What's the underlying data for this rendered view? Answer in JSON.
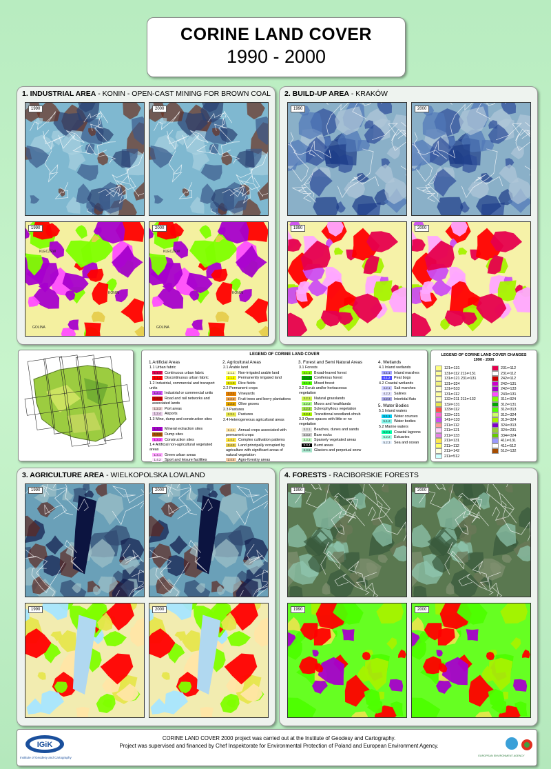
{
  "title": {
    "line1": "CORINE LAND COVER",
    "line2": "1990 - 2000"
  },
  "panels": [
    {
      "number_title": "1. INDUSTRIAL AREA",
      "subtitle": "- KONIN - OPEN-CAST MINING FOR BROWN COAL",
      "maps": [
        "1990",
        "2000",
        "1990",
        "2000"
      ],
      "places": [
        "KLECZEW",
        "KONIN",
        "GOLINA"
      ]
    },
    {
      "number_title": "2. BUILD-UP AREA",
      "subtitle": "- KRAKÓW",
      "maps": [
        "1990",
        "2000",
        "1990",
        "2000"
      ],
      "places": []
    },
    {
      "number_title": "3. AGRICULTURE AREA",
      "subtitle": "- WIELKOPOLSKA LOWLAND",
      "maps": [
        "1990",
        "2000",
        "1990",
        "2000"
      ],
      "places": []
    },
    {
      "number_title": "4. FORESTS",
      "subtitle": "- RACIBORSKIE FORESTS",
      "maps": [
        "1990",
        "2000",
        "1990",
        "2000"
      ],
      "places": []
    }
  ],
  "legend": {
    "title": "LEGEND OF CORINE LAND COVER",
    "groups": [
      {
        "heading": "1.Artificial Areas",
        "entries": [
          {
            "label": "1.1 Urban fabric"
          },
          {
            "code": "1.1.1",
            "label": "Continuous urban fabric",
            "color": "#e6004d"
          },
          {
            "code": "1.1.2",
            "label": "Discontinuous urban fabric",
            "color": "#ff0000"
          },
          {
            "label": "1.2 Industrial, commercial and transport units"
          },
          {
            "code": "1.2.1",
            "label": "Industrial or commercial units",
            "color": "#cc4df2"
          },
          {
            "code": "1.2.2",
            "label": "Road and rail networks and associated lands",
            "color": "#cc0000"
          },
          {
            "code": "1.2.3",
            "label": "Port areas",
            "color": "#e6cccc"
          },
          {
            "code": "1.2.4",
            "label": "Airports",
            "color": "#e6cce6"
          },
          {
            "label": "1.3 Mine, dump and construction sites"
          },
          {
            "code": "1.3.1",
            "label": "Mineral extraction sites",
            "color": "#a600cc"
          },
          {
            "code": "1.3.2",
            "label": "Dump sites",
            "color": "#a64d00"
          },
          {
            "code": "1.3.3",
            "label": "Construction sites",
            "color": "#ff4dff"
          },
          {
            "label": "1.4 Artificial non-agricultural vegetated areas"
          },
          {
            "code": "1.4.1",
            "label": "Green urban areas",
            "color": "#ffa6ff"
          },
          {
            "code": "1.4.2",
            "label": "Sport and leisure facilities",
            "color": "#ffe6ff"
          }
        ]
      },
      {
        "heading": "2. Agricultural Areas",
        "entries": [
          {
            "label": "2.1 Arable land"
          },
          {
            "code": "2.1.1",
            "label": "Non-irrigated arable land",
            "color": "#ffffa8"
          },
          {
            "code": "2.1.2",
            "label": "Permanently irrigated land",
            "color": "#ffff00"
          },
          {
            "code": "2.1.3",
            "label": "Rice fields",
            "color": "#e6e600"
          },
          {
            "label": "2.2 Permanent crops"
          },
          {
            "code": "2.2.1",
            "label": "Vineyards",
            "color": "#e68000"
          },
          {
            "code": "2.2.2",
            "label": "Fruit trees and berry plantations",
            "color": "#f2a64d"
          },
          {
            "code": "2.2.3",
            "label": "Olive groves",
            "color": "#e6a600"
          },
          {
            "label": "2.3 Pastures"
          },
          {
            "code": "2.3.1",
            "label": "Pastures",
            "color": "#e6e64d"
          },
          {
            "label": "2.4 Heterogeneous agricultural areas"
          },
          {
            "code": "2.4.1",
            "label": "Annual crops associated with permanent crops",
            "color": "#ffe6a6"
          },
          {
            "code": "2.4.2",
            "label": "Complex cultivation patterns",
            "color": "#ffe64d"
          },
          {
            "code": "2.4.3",
            "label": "Land principally occupied by agriculture with significant areas of natural vegetation",
            "color": "#e6cc4d"
          },
          {
            "code": "2.4.4",
            "label": "Agro-forestry areas",
            "color": "#f2cca6"
          }
        ]
      },
      {
        "heading": "3. Forest and Semi Natural Areas",
        "entries": [
          {
            "label": "3.1 Forests"
          },
          {
            "code": "3.1.1",
            "label": "Broad-leaved forest",
            "color": "#80ff00"
          },
          {
            "code": "3.1.2",
            "label": "Coniferous forest",
            "color": "#00a600"
          },
          {
            "code": "3.1.3",
            "label": "Mixed forest",
            "color": "#4dff00"
          },
          {
            "label": "3.2 Scrub and/or herbaceous vegetation"
          },
          {
            "code": "3.2.1",
            "label": "Natural grasslands",
            "color": "#ccf24d"
          },
          {
            "code": "3.2.2",
            "label": "Moors and heathlands",
            "color": "#a6ff80"
          },
          {
            "code": "3.2.3",
            "label": "Sclerophyllous vegetation",
            "color": "#a6e64d"
          },
          {
            "code": "3.2.4",
            "label": "Transitional woodland-shrub",
            "color": "#a6f200"
          },
          {
            "label": "3.3 Open spaces with little or no vegetation"
          },
          {
            "code": "3.3.1",
            "label": "Beaches, dunes and sands",
            "color": "#e6e6e6"
          },
          {
            "code": "3.3.2",
            "label": "Bare rocks",
            "color": "#cccccc"
          },
          {
            "code": "3.3.3",
            "label": "Sparsely vegetated areas",
            "color": "#ccffcc"
          },
          {
            "code": "3.3.4",
            "label": "Burnt areas",
            "color": "#000000"
          },
          {
            "code": "3.3.5",
            "label": "Glaciers and perpetual snow",
            "color": "#a6e6cc"
          }
        ]
      },
      {
        "heading": "4. Wetlands",
        "entries": [
          {
            "label": "4.1 Inland wetlands"
          },
          {
            "code": "4.1.1",
            "label": "Inland marshes",
            "color": "#a6a6ff"
          },
          {
            "code": "4.1.2",
            "label": "Peat bogs",
            "color": "#4d4dff"
          },
          {
            "label": "4.2 Coastal wetlands"
          },
          {
            "code": "4.2.1",
            "label": "Salt marshes",
            "color": "#ccccff"
          },
          {
            "code": "4.2.2",
            "label": "Salines",
            "color": "#e6e6ff"
          },
          {
            "code": "4.2.3",
            "label": "Intertidal flats",
            "color": "#a6a6e6"
          }
        ]
      },
      {
        "heading": "5. Water Bodies",
        "entries": [
          {
            "label": "5.1 Inland waters"
          },
          {
            "code": "5.1.1",
            "label": "Water courses",
            "color": "#00ccf2"
          },
          {
            "code": "5.1.2",
            "label": "Water bodies",
            "color": "#80f2e6"
          },
          {
            "label": "5.2 Marine waters"
          },
          {
            "code": "5.2.1",
            "label": "Coastal lagoons",
            "color": "#00ffa6"
          },
          {
            "code": "5.2.2",
            "label": "Estuaries",
            "color": "#a6ffe6"
          },
          {
            "code": "5.2.3",
            "label": "Sea and ocean",
            "color": "#e6f2ff"
          }
        ]
      }
    ]
  },
  "changes": {
    "title": "LEGEND OF CORINE LAND COVER CHANGES",
    "period": "1990 - 2000",
    "columns": [
      [
        {
          "code": "121⇐131",
          "color": "#ffff80"
        },
        {
          "code": "131⇐112 211⇐131",
          "color": "#ffff99"
        },
        {
          "code": "131⇐121 231⇐131",
          "color": "#ffffb0"
        },
        {
          "code": "131⇐324",
          "color": "#f2f280"
        },
        {
          "code": "131⇐533",
          "color": "#ffffcc"
        },
        {
          "code": "131⇐112",
          "color": "#ffffa0"
        },
        {
          "code": "132⇐211 211⇐132",
          "color": "#ffffc0"
        },
        {
          "code": "132⇐131",
          "color": "#e6e64d"
        },
        {
          "code": "133⇐112",
          "color": "#ff4d4d"
        },
        {
          "code": "133⇐121",
          "color": "#ff66cc"
        },
        {
          "code": "141⇐133",
          "color": "#cc4df2"
        },
        {
          "code": "211⇐112",
          "color": "#ff9999"
        },
        {
          "code": "211⇐121",
          "color": "#ffccff"
        },
        {
          "code": "211⇐133",
          "color": "#e680e6"
        },
        {
          "code": "211⇐131",
          "color": "#ffe64d"
        },
        {
          "code": "211⇐112",
          "color": "#ffff66"
        },
        {
          "code": "211⇐142",
          "color": "#ffffe0"
        },
        {
          "code": "211⇐512",
          "color": "#ccffff"
        }
      ],
      [
        {
          "code": "231⇐112",
          "color": "#e6004d"
        },
        {
          "code": "231⇐112",
          "color": "#ffffff"
        },
        {
          "code": "242⇐112",
          "color": "#cc0000"
        },
        {
          "code": "242⇐131",
          "color": "#cc00cc"
        },
        {
          "code": "242⇐133",
          "color": "#a600cc"
        },
        {
          "code": "243⇐131",
          "color": "#ff4dff"
        },
        {
          "code": "311⇐324",
          "color": "#80ff00"
        },
        {
          "code": "312⇐131",
          "color": "#00a600"
        },
        {
          "code": "312⇐313",
          "color": "#4dff00"
        },
        {
          "code": "312⇐324",
          "color": "#ccff66"
        },
        {
          "code": "313⇐324",
          "color": "#a6f200"
        },
        {
          "code": "324⇐313",
          "color": "#8000cc"
        },
        {
          "code": "324⇐231",
          "color": "#99cc33"
        },
        {
          "code": "334⇐324",
          "color": "#66cc00"
        },
        {
          "code": "411⇐131",
          "color": "#9999ff"
        },
        {
          "code": "411⇐512",
          "color": "#ffffff"
        },
        {
          "code": "512⇐132",
          "color": "#a64d00"
        }
      ]
    ]
  },
  "footer": {
    "line1": "CORINE LAND COVER 2000 project was carried out at the Institute of Geodesy and Cartography.",
    "line2": "Project was supervised and financed by Chef Inspektorate for Environmental Protection of Poland and European Environment Agency."
  },
  "logos": {
    "igik": "IGiK",
    "igik_name": "Institute of Geodesy and Cartography",
    "eea": "EUROPEAN ENVIRONMENT AGENCY"
  }
}
